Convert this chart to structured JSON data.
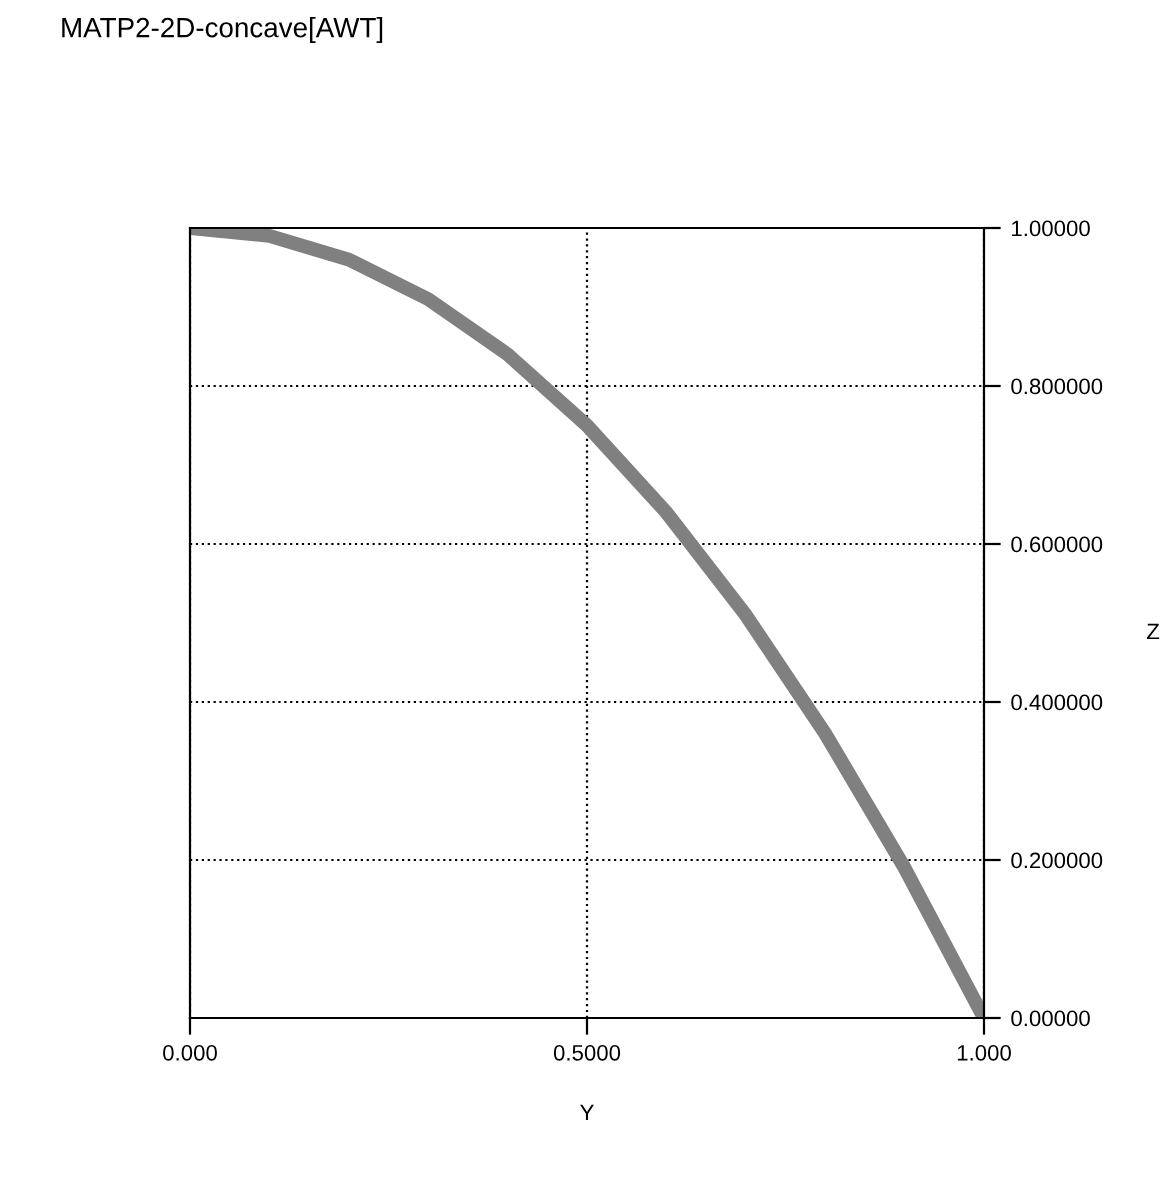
{
  "chart_data": {
    "type": "line",
    "title": "MATP2-2D-concave[AWT]",
    "xlabel": "Y",
    "ylabel": "Z",
    "x": [
      0,
      0.1,
      0.2,
      0.3,
      0.4,
      0.5,
      0.6,
      0.7,
      0.8,
      0.9,
      1.0
    ],
    "series": [
      {
        "color": "#808080",
        "values": [
          1.0,
          0.99,
          0.96,
          0.91,
          0.84,
          0.75,
          0.64,
          0.51,
          0.36,
          0.19,
          0.0
        ]
      }
    ],
    "xlim": [
      0,
      1
    ],
    "ylim": [
      0,
      1
    ],
    "xticks": [
      {
        "value": 0,
        "label": "0.000"
      },
      {
        "value": 0.5,
        "label": "0.5000"
      },
      {
        "value": 1,
        "label": "1.000"
      }
    ],
    "yticks": [
      {
        "value": 0,
        "label": "0.00000"
      },
      {
        "value": 0.2,
        "label": "0.200000"
      },
      {
        "value": 0.4,
        "label": "0.400000"
      },
      {
        "value": 0.6,
        "label": "0.600000"
      },
      {
        "value": 0.8,
        "label": "0.800000"
      },
      {
        "value": 1,
        "label": "1.00000"
      }
    ],
    "grid": true,
    "marker": "none",
    "line_style": "solid"
  }
}
